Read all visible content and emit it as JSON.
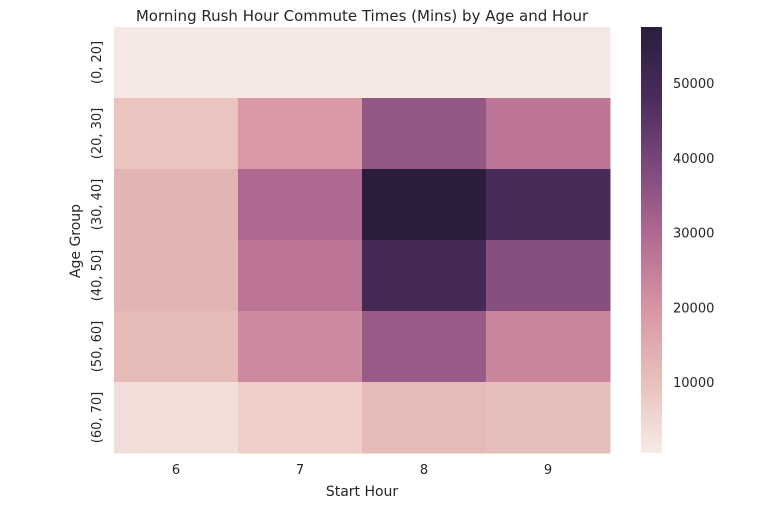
{
  "chart_data": {
    "type": "heatmap",
    "title": "Morning Rush Hour Commute Times (Mins) by Age and Hour",
    "xlabel": "Start Hour",
    "ylabel": "Age Group",
    "x_categories": [
      "6",
      "7",
      "8",
      "9"
    ],
    "y_categories": [
      "(0, 20]",
      "(20, 30]",
      "(30, 40]",
      "(40, 50]",
      "(50, 60]",
      "(60, 70]"
    ],
    "values": [
      [
        1000,
        1000,
        1000,
        1500
      ],
      [
        9000,
        19000,
        35000,
        27000
      ],
      [
        13000,
        30000,
        57500,
        49000
      ],
      [
        13000,
        27000,
        49500,
        37000
      ],
      [
        11500,
        22500,
        34000,
        23500
      ],
      [
        3500,
        7000,
        11500,
        10500
      ]
    ],
    "colorbar": {
      "min": 500,
      "max": 57500,
      "ticks": [
        10000,
        20000,
        30000,
        40000,
        50000
      ],
      "tick_labels": [
        "10000",
        "20000",
        "30000",
        "40000",
        "50000"
      ]
    },
    "colormap": [
      "#f7ebe6",
      "#e8c1bb",
      "#d897a4",
      "#b46c93",
      "#7e4a7d",
      "#4a2c5c",
      "#2a1e3c"
    ],
    "grid": false
  }
}
